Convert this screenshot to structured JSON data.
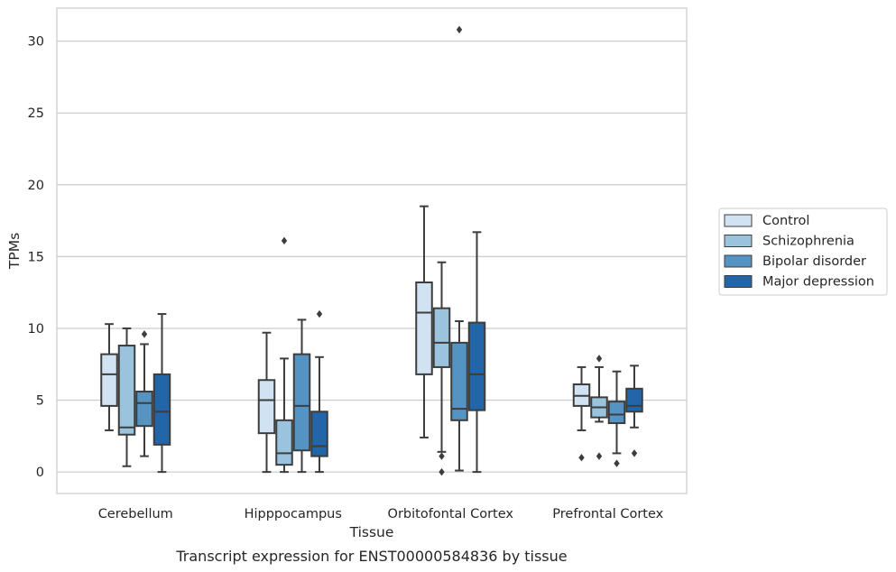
{
  "chart_data": {
    "type": "box",
    "title": "",
    "caption": "Transcript expression for ENST00000584836 by tissue",
    "xlabel": "Tissue",
    "ylabel": "TPMs",
    "ylim": [
      -1.5,
      32.3
    ],
    "yticks": [
      0,
      5,
      10,
      15,
      20,
      25,
      30
    ],
    "grid": "horizontal",
    "legend_position": "right",
    "categories": [
      "Cerebellum",
      "Hipppocampus",
      "Orbitofontal Cortex",
      "Prefrontal Cortex"
    ],
    "series": [
      {
        "name": "Control",
        "color": "#d1e2f2",
        "boxes": [
          {
            "min": 2.9,
            "q1": 4.6,
            "median": 6.8,
            "q3": 8.2,
            "max": 10.3,
            "outliers": []
          },
          {
            "min": 0.0,
            "q1": 2.7,
            "median": 5.0,
            "q3": 6.4,
            "max": 9.7,
            "outliers": []
          },
          {
            "min": 2.4,
            "q1": 6.8,
            "median": 11.1,
            "q3": 13.2,
            "max": 18.5,
            "outliers": []
          },
          {
            "min": 2.9,
            "q1": 4.6,
            "median": 5.3,
            "q3": 6.1,
            "max": 7.3,
            "outliers": [
              1.0
            ]
          }
        ]
      },
      {
        "name": "Schizophrenia",
        "color": "#9ac4de",
        "boxes": [
          {
            "min": 0.4,
            "q1": 2.6,
            "median": 3.1,
            "q3": 8.8,
            "max": 10.0,
            "outliers": []
          },
          {
            "min": 0.0,
            "q1": 0.5,
            "median": 1.3,
            "q3": 3.6,
            "max": 7.9,
            "outliers": [
              16.1
            ]
          },
          {
            "min": 1.4,
            "q1": 7.3,
            "median": 9.0,
            "q3": 11.4,
            "max": 14.6,
            "outliers": [
              1.1,
              0.0
            ]
          },
          {
            "min": 3.5,
            "q1": 3.8,
            "median": 4.5,
            "q3": 5.2,
            "max": 7.3,
            "outliers": [
              7.9,
              1.1
            ]
          }
        ]
      },
      {
        "name": "Bipolar disorder",
        "color": "#5593c3",
        "boxes": [
          {
            "min": 1.1,
            "q1": 3.2,
            "median": 4.8,
            "q3": 5.6,
            "max": 8.9,
            "outliers": [
              9.6
            ]
          },
          {
            "min": 0.0,
            "q1": 1.5,
            "median": 4.6,
            "q3": 8.2,
            "max": 10.6,
            "outliers": []
          },
          {
            "min": 0.1,
            "q1": 3.6,
            "median": 4.4,
            "q3": 9.0,
            "max": 10.5,
            "outliers": [
              30.8
            ]
          },
          {
            "min": 1.3,
            "q1": 3.4,
            "median": 4.0,
            "q3": 4.9,
            "max": 7.0,
            "outliers": [
              0.6
            ]
          }
        ]
      },
      {
        "name": "Major depression",
        "color": "#2265a8",
        "boxes": [
          {
            "min": 0.0,
            "q1": 1.9,
            "median": 4.2,
            "q3": 6.8,
            "max": 11.0,
            "outliers": []
          },
          {
            "min": 0.0,
            "q1": 1.1,
            "median": 1.8,
            "q3": 4.2,
            "max": 8.0,
            "outliers": [
              11.0
            ]
          },
          {
            "min": 0.0,
            "q1": 4.3,
            "median": 6.8,
            "q3": 10.4,
            "max": 16.7,
            "outliers": []
          },
          {
            "min": 3.1,
            "q1": 4.2,
            "median": 4.6,
            "q3": 5.8,
            "max": 7.4,
            "outliers": [
              1.3
            ]
          }
        ]
      }
    ]
  }
}
